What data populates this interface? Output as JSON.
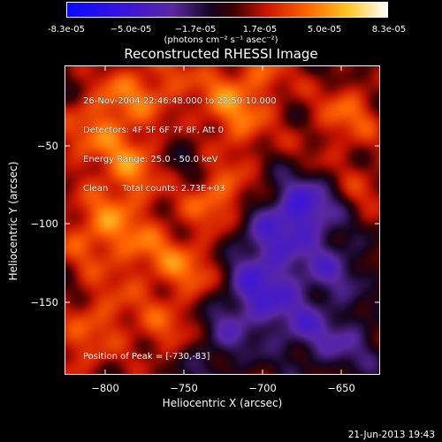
{
  "colorbar": {
    "ticks": [
      "-8.3e-05",
      "−5.0e-05",
      "−1.7e-05",
      "1.7e-05",
      "5.0e-05",
      "8.3e-05"
    ],
    "units": "(photons cm⁻² s⁻¹ asec⁻²)",
    "range": [
      -8.3e-05,
      8.3e-05
    ]
  },
  "plot": {
    "title": "Reconstructed RHESSI Image",
    "info_lines": [
      "26-Nov-2004 22:46:48.000 to 22:50:10.000",
      "Detectors: 4F 5F 6F 7F 8F, Att 0",
      "Energy Range: 25.0 - 50.0 keV",
      "Clean     Total counts: 2.73E+03"
    ],
    "peak_text": "Position of Peak = [-730,-83]",
    "xlabel": "Heliocentric X (arcsec)",
    "ylabel": "Heliocentric Y (arcsec)",
    "xticks": [
      "−800",
      "−750",
      "−700",
      "−650"
    ],
    "yticks": [
      "−50",
      "−100",
      "−150"
    ],
    "x_range": [
      -825,
      -627
    ],
    "y_range": [
      -195,
      -15
    ]
  },
  "timestamp": "21-Jun-2013 19:43"
}
